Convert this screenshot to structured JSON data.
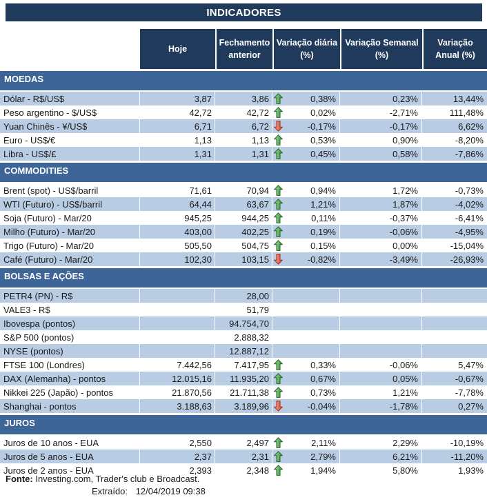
{
  "title": "INDICADORES",
  "header": {
    "columns": [
      {
        "line1": "Hoje",
        "line2": ""
      },
      {
        "line1": "Fechamento",
        "line2": "anterior"
      },
      {
        "line1": "Variação diária",
        "line2": "(%)"
      },
      {
        "line1": "Variação Semanal",
        "line2": "(%)"
      },
      {
        "line1": "Variação",
        "line2": "Anual (%)"
      }
    ]
  },
  "sections": [
    {
      "name": "MOEDAS",
      "rows": [
        {
          "label": "Dólar - R$/US$",
          "hoje": "3,87",
          "fechamento": "3,86",
          "arrow": "up",
          "var_diaria": "0,38%",
          "var_semanal": "0,23%",
          "var_anual": "13,44%"
        },
        {
          "label": "Peso argentino - $/US$",
          "hoje": "42,72",
          "fechamento": "42,72",
          "arrow": "up",
          "var_diaria": "0,02%",
          "var_semanal": "-2,71%",
          "var_anual": "111,48%"
        },
        {
          "label": "Yuan Chinês - ¥/US$",
          "hoje": "6,71",
          "fechamento": "6,72",
          "arrow": "down",
          "var_diaria": "-0,17%",
          "var_semanal": "-0,17%",
          "var_anual": "6,62%"
        },
        {
          "label": "Euro - US$/€",
          "hoje": "1,13",
          "fechamento": "1,13",
          "arrow": "up",
          "var_diaria": "0,53%",
          "var_semanal": "0,90%",
          "var_anual": "-8,20%"
        },
        {
          "label": "Libra - US$/£",
          "hoje": "1,31",
          "fechamento": "1,31",
          "arrow": "up",
          "var_diaria": "0,45%",
          "var_semanal": "0,58%",
          "var_anual": "-7,86%"
        }
      ]
    },
    {
      "name": "COMMODITIES",
      "rows": [
        {
          "label": "Brent (spot) - US$/barril",
          "hoje": "71,61",
          "fechamento": "70,94",
          "arrow": "up",
          "var_diaria": "0,94%",
          "var_semanal": "1,72%",
          "var_anual": "-0,73%"
        },
        {
          "label": "WTI (Futuro) - US$/barril",
          "hoje": "64,44",
          "fechamento": "63,67",
          "arrow": "up",
          "var_diaria": "1,21%",
          "var_semanal": "1,87%",
          "var_anual": "-4,02%"
        },
        {
          "label": "Soja (Futuro) - Mar/20",
          "hoje": "945,25",
          "fechamento": "944,25",
          "arrow": "up",
          "var_diaria": "0,11%",
          "var_semanal": "-0,37%",
          "var_anual": "-6,41%"
        },
        {
          "label": "Milho (Futuro) - Mar/20",
          "hoje": "403,00",
          "fechamento": "402,25",
          "arrow": "up",
          "var_diaria": "0,19%",
          "var_semanal": "-0,06%",
          "var_anual": "-4,95%"
        },
        {
          "label": "Trigo (Futuro) - Mar/20",
          "hoje": "505,50",
          "fechamento": "504,75",
          "arrow": "up",
          "var_diaria": "0,15%",
          "var_semanal": "0,00%",
          "var_anual": "-15,04%"
        },
        {
          "label": "Café (Futuro) - Mar/20",
          "hoje": "102,30",
          "fechamento": "103,15",
          "arrow": "down",
          "var_diaria": "-0,82%",
          "var_semanal": "-3,49%",
          "var_anual": "-26,93%"
        }
      ]
    },
    {
      "name": "BOLSAS E AÇÕES",
      "rows": [
        {
          "label": "PETR4 (PN) - R$",
          "hoje": "",
          "fechamento": "28,00",
          "arrow": null,
          "var_diaria": "",
          "var_semanal": "",
          "var_anual": ""
        },
        {
          "label": "VALE3 - R$",
          "hoje": "",
          "fechamento": "51,79",
          "arrow": null,
          "var_diaria": "",
          "var_semanal": "",
          "var_anual": ""
        },
        {
          "label": "Ibovespa (pontos)",
          "hoje": "",
          "fechamento": "94.754,70",
          "arrow": null,
          "var_diaria": "",
          "var_semanal": "",
          "var_anual": ""
        },
        {
          "label": "S&P 500 (pontos)",
          "hoje": "",
          "fechamento": "2.888,32",
          "arrow": null,
          "var_diaria": "",
          "var_semanal": "",
          "var_anual": ""
        },
        {
          "label": "NYSE (pontos)",
          "hoje": "",
          "fechamento": "12.887,12",
          "arrow": null,
          "var_diaria": "",
          "var_semanal": "",
          "var_anual": ""
        },
        {
          "label": "FTSE 100 (Londres)",
          "hoje": "7.442,56",
          "fechamento": "7.417,95",
          "arrow": "up",
          "var_diaria": "0,33%",
          "var_semanal": "-0,06%",
          "var_anual": "5,47%"
        },
        {
          "label": "DAX (Alemanha) - pontos",
          "hoje": "12.015,16",
          "fechamento": "11.935,20",
          "arrow": "up",
          "var_diaria": "0,67%",
          "var_semanal": "0,05%",
          "var_anual": "-0,67%"
        },
        {
          "label": "Nikkei 225 (Japão) - pontos",
          "hoje": "21.870,56",
          "fechamento": "21.711,38",
          "arrow": "up",
          "var_diaria": "0,73%",
          "var_semanal": "1,21%",
          "var_anual": "-7,78%"
        },
        {
          "label": "Shanghai - pontos",
          "hoje": "3.188,63",
          "fechamento": "3.189,96",
          "arrow": "down",
          "var_diaria": "-0,04%",
          "var_semanal": "-1,78%",
          "var_anual": "0,27%"
        }
      ]
    },
    {
      "name": "JUROS",
      "rows": [
        {
          "label": "Juros de 10 anos - EUA",
          "hoje": "2,550",
          "fechamento": "2,497",
          "arrow": "up",
          "var_diaria": "2,11%",
          "var_semanal": "2,29%",
          "var_anual": "-10,19%"
        },
        {
          "label": "Juros de 5 anos - EUA",
          "hoje": "2,37",
          "fechamento": "2,31",
          "arrow": "up",
          "var_diaria": "2,79%",
          "var_semanal": "6,21%",
          "var_anual": "-11,20%"
        },
        {
          "label": "Juros de 2 anos - EUA",
          "hoje": "2,393",
          "fechamento": "2,348",
          "arrow": "up",
          "var_diaria": "1,94%",
          "var_semanal": "5,80%",
          "var_anual": "1,93%"
        }
      ]
    }
  ],
  "footer": {
    "fonte_label": "Fonte:",
    "fonte_text": "Investing.com, Trader's club e Broadcast.",
    "extraido_label": "Extraído:",
    "extraido_value": "12/04/2019 09:38"
  },
  "colors": {
    "navy": "#203A5C",
    "section_blue": "#3D6597",
    "row_shade": "#B8CCE4",
    "up_fill_light": "#A6D8A6",
    "up_fill_dark": "#379237",
    "up_stroke": "#1C641C",
    "down_fill_light": "#F2B2A2",
    "down_fill_dark": "#D2402C",
    "down_stroke": "#9E2B18"
  }
}
